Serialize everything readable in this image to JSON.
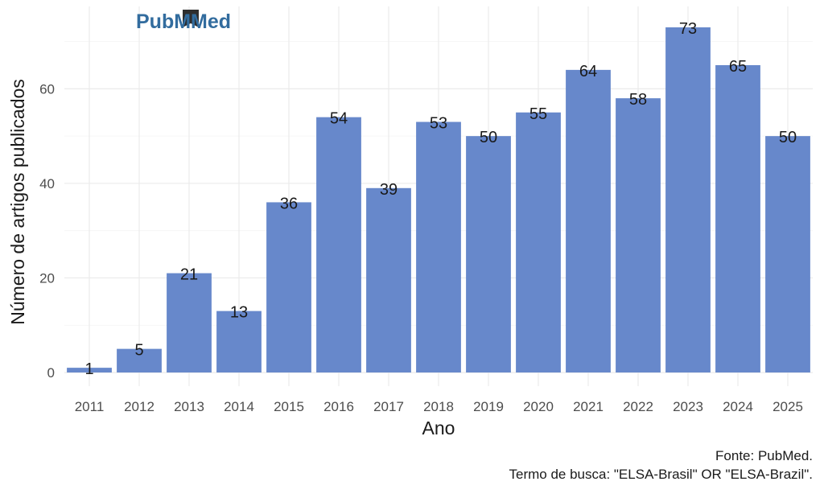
{
  "logo": {
    "text": "PubMed",
    "part1": "Pub",
    "part2": "Med",
    "color_primary": "#326c9e",
    "color_dark": "#2e2e2e"
  },
  "chart_data": {
    "type": "bar",
    "categories": [
      "2011",
      "2012",
      "2013",
      "2014",
      "2015",
      "2016",
      "2017",
      "2018",
      "2019",
      "2020",
      "2021",
      "2022",
      "2023",
      "2024",
      "2025"
    ],
    "values": [
      1,
      5,
      21,
      13,
      36,
      54,
      39,
      53,
      50,
      55,
      64,
      58,
      73,
      65,
      50
    ],
    "xlabel": "Ano",
    "ylabel": "Número de artigos publicados",
    "yticks": [
      0,
      20,
      40,
      60
    ],
    "ylim": [
      0,
      76
    ],
    "bar_color": "#6788cb",
    "grid": true,
    "data_labels": true,
    "caption_lines": [
      "Fonte: PubMed.",
      "Termo de busca: \"ELSA-Brasil\" OR \"ELSA-Brazil\"."
    ]
  }
}
